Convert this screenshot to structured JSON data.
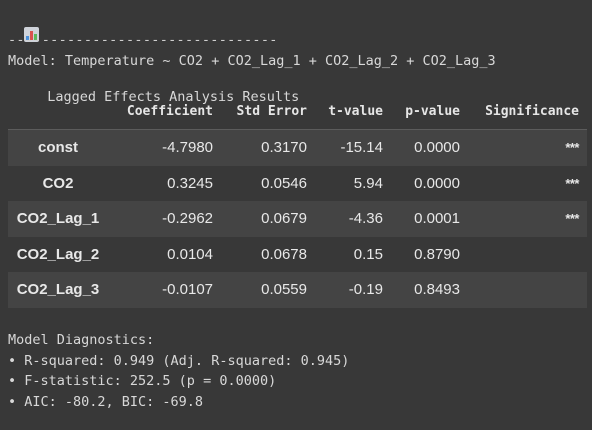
{
  "output": {
    "title": "Lagged Effects Analysis Results",
    "title_icon": "bar-chart-icon",
    "separator": "--------------------------------",
    "model_line": "Model: Temperature ~ CO2 + CO2_Lag_1 + CO2_Lag_2 + CO2_Lag_3"
  },
  "table": {
    "headers": [
      "",
      "Coefficient",
      "Std Error",
      "t-value",
      "p-value",
      "Significance"
    ],
    "rows": [
      {
        "name": "const",
        "coef": "-4.7980",
        "se": "0.3170",
        "t": "-15.14",
        "p": "0.0000",
        "sig": "***"
      },
      {
        "name": "CO2",
        "coef": "0.3245",
        "se": "0.0546",
        "t": "5.94",
        "p": "0.0000",
        "sig": "***"
      },
      {
        "name": "CO2_Lag_1",
        "coef": "-0.2962",
        "se": "0.0679",
        "t": "-4.36",
        "p": "0.0001",
        "sig": "***"
      },
      {
        "name": "CO2_Lag_2",
        "coef": "0.0104",
        "se": "0.0678",
        "t": "0.15",
        "p": "0.8790",
        "sig": ""
      },
      {
        "name": "CO2_Lag_3",
        "coef": "-0.0107",
        "se": "0.0559",
        "t": "-0.19",
        "p": "0.8493",
        "sig": ""
      }
    ]
  },
  "diagnostics": {
    "heading": "Model Diagnostics:",
    "lines": [
      "• R-squared: 0.949 (Adj. R-squared: 0.945)",
      "• F-statistic: 252.5 (p = 0.0000)",
      "• AIC: -80.2, BIC: -69.8"
    ]
  },
  "colors": {
    "background": "#383838",
    "row_stripe": "#444444",
    "text": "#e8e8e8"
  }
}
